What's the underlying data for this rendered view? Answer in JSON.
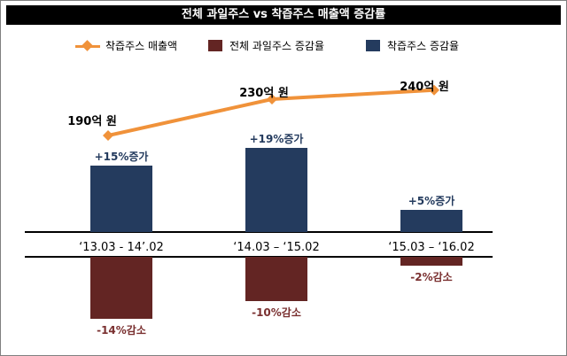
{
  "chart_data": {
    "type": "bar",
    "title": "전체 과일주스 vs 착즙주스 매출액 증감률",
    "categories": [
      "‘13.03  - 14’.02",
      "‘14.03 – ‘15.02",
      "‘15.03 – ‘16.02"
    ],
    "series": [
      {
        "name": "착즙주스 매출액",
        "type": "line",
        "values": [
          190,
          230,
          240
        ],
        "labels": [
          "190억 원",
          "230억 원",
          "240억 원"
        ],
        "color": "#f0923a"
      },
      {
        "name": "전체 과일주스 증감율",
        "type": "bar",
        "values": [
          -14,
          -10,
          -2
        ],
        "labels": [
          "-14%감소",
          "-10%감소",
          "-2%감소"
        ],
        "color": "#632523"
      },
      {
        "name": "착즙주스 증감율",
        "type": "bar",
        "values": [
          15,
          19,
          5
        ],
        "labels": [
          "+15%증가",
          "+19%증가",
          "+5%증가"
        ],
        "color": "#243b5e"
      }
    ],
    "label_colors": {
      "positive": "#243b5e",
      "negative": "#7a3030"
    },
    "ylim_bars": [
      -14,
      19
    ],
    "legend_position": "top"
  }
}
